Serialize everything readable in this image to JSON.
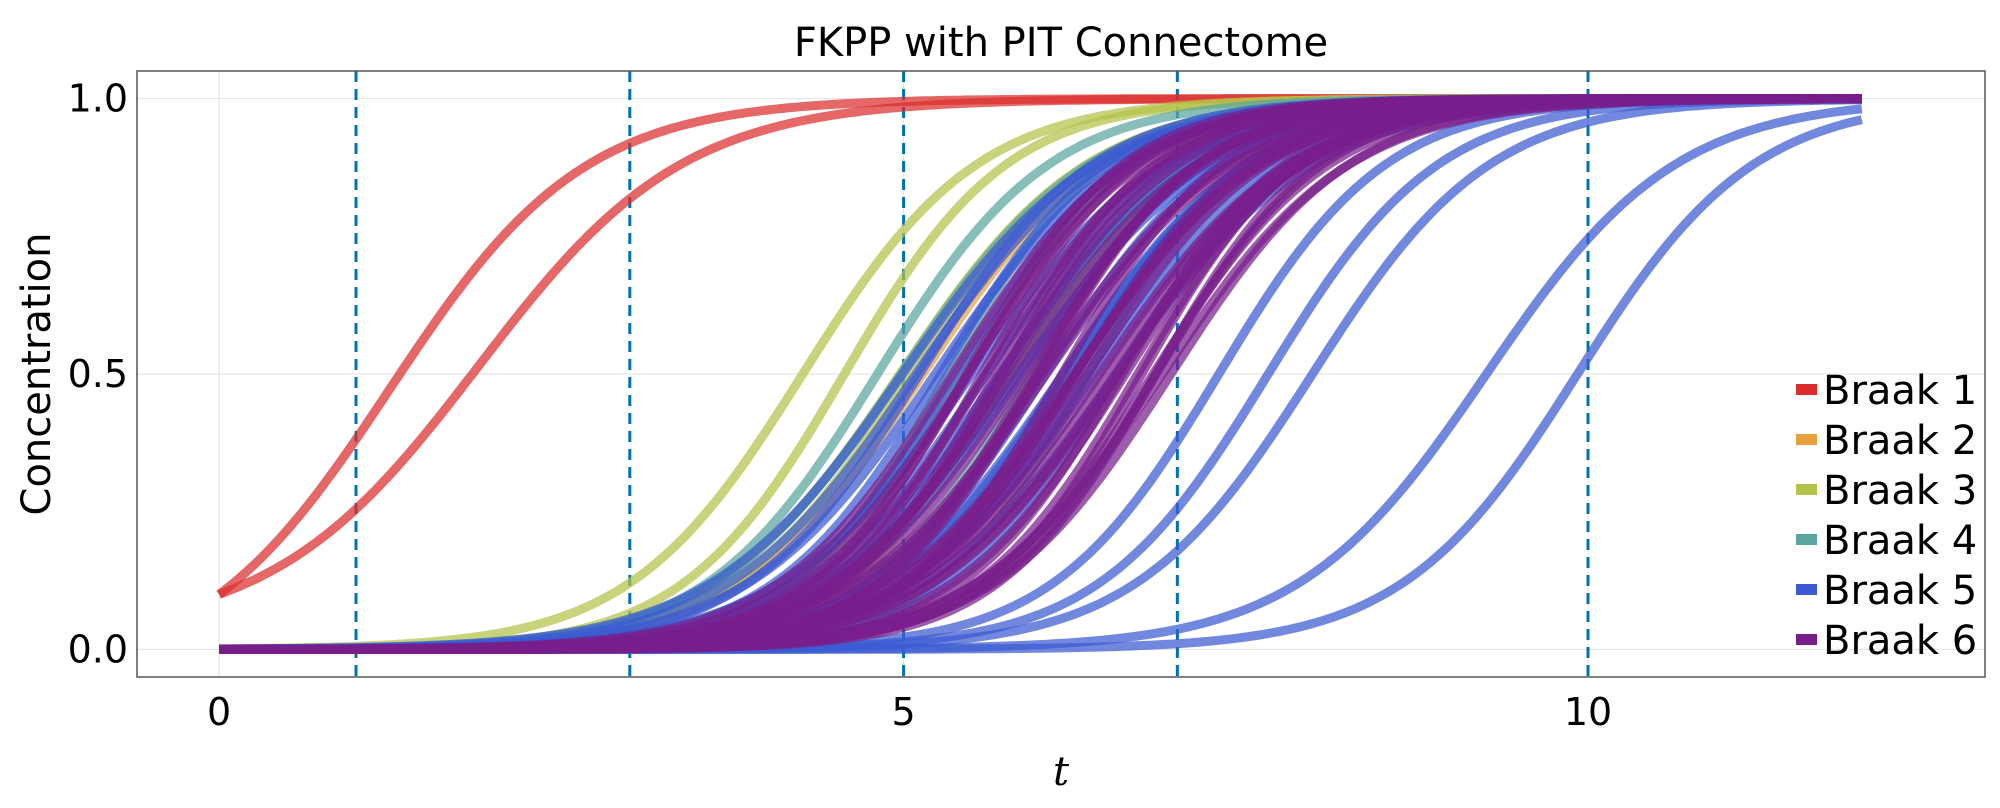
{
  "chart_data": {
    "type": "line",
    "title": "FKPP with PIT Connectome",
    "xlabel": "t",
    "ylabel": "Concentration",
    "xlim": [
      -0.6,
      12.9
    ],
    "ylim": [
      -0.05,
      1.05
    ],
    "xticks": [
      0,
      5,
      10
    ],
    "xtick_labels": [
      "0",
      "5",
      "10"
    ],
    "yticks": [
      0.0,
      0.5,
      1.0
    ],
    "ytick_labels": [
      "0.0",
      "0.5",
      "1.0"
    ],
    "grid": true,
    "legend_position": "right",
    "vlines": [
      1,
      3,
      5,
      7,
      10
    ],
    "vline_color": "#0072B2",
    "t_end": 12,
    "series": [
      {
        "name": "Braak 1",
        "color": "#dc2d2d",
        "curves": [
          {
            "midpoint": 1.6,
            "rate": 1.4,
            "count": 2
          }
        ]
      },
      {
        "name": "Braak 2",
        "color": "#e8a040",
        "curves": [
          {
            "midpoint": 5.5,
            "rate": 1.5,
            "count": 2
          }
        ]
      },
      {
        "name": "Braak 3",
        "color": "#b4c24a",
        "curves": [
          {
            "midpoint": 4.6,
            "rate": 1.6,
            "count": 3
          },
          {
            "midpoint": 5.4,
            "rate": 1.6,
            "count": 2
          }
        ]
      },
      {
        "name": "Braak 4",
        "color": "#5aa5a0",
        "curves": [
          {
            "midpoint": 5.6,
            "rate": 1.6,
            "count": 8
          }
        ]
      },
      {
        "name": "Braak 5",
        "color": "#3c5ad2",
        "curves": [
          {
            "midpoint": 5.8,
            "rate": 1.5,
            "count": 20
          },
          {
            "midpoint": 7.6,
            "rate": 1.5,
            "count": 3
          },
          {
            "midpoint": 9.6,
            "rate": 1.6,
            "count": 2
          }
        ]
      },
      {
        "name": "Braak 6",
        "color": "#781e8c",
        "curves": [
          {
            "midpoint": 6.2,
            "rate": 1.6,
            "count": 35
          }
        ]
      }
    ]
  }
}
